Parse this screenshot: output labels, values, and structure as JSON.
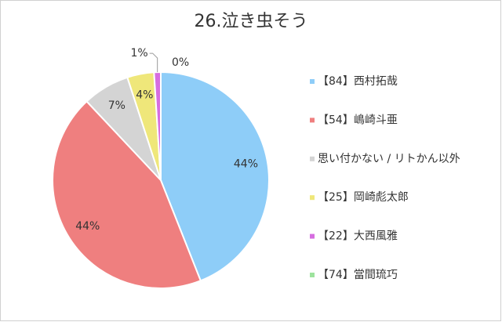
{
  "chart_data": {
    "type": "pie",
    "title": "26.泣き虫そう",
    "categories": [
      "【84】西村拓哉",
      "【54】嶋崎斗亜",
      "思い付かない / リトかん以外",
      "【25】岡崎彪太郎",
      "【22】大西風雅",
      "【74】當間琉巧"
    ],
    "values": [
      44,
      44,
      7,
      4,
      1,
      0
    ],
    "value_labels": [
      "44%",
      "44%",
      "7%",
      "4%",
      "1%",
      "0%"
    ],
    "colors": [
      "#8ecdf8",
      "#ef7f7f",
      "#d4d4d4",
      "#efe77a",
      "#d66de0",
      "#9de39d"
    ],
    "legend": "right"
  }
}
